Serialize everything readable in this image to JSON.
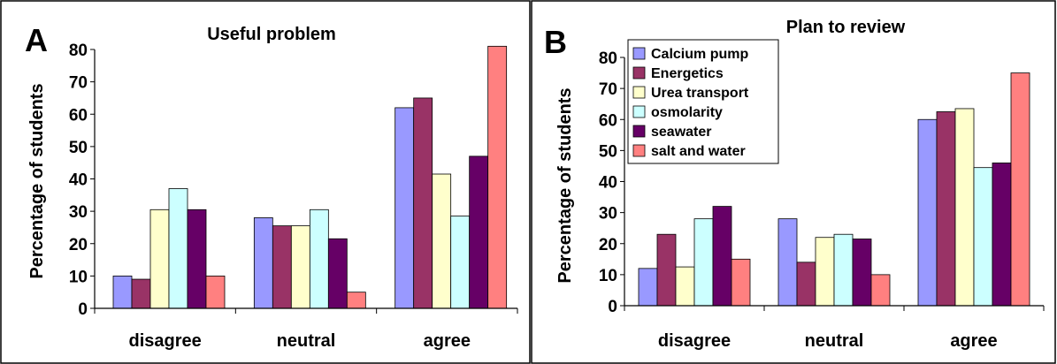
{
  "chart_data": [
    {
      "type": "bar",
      "panel_label": "A",
      "title": "Useful problem",
      "ylabel": "Percentage of students",
      "xlabel": "",
      "ylim": [
        0,
        80
      ],
      "yticks": [
        "0",
        "10",
        "20",
        "30",
        "40",
        "50",
        "60",
        "70",
        "80"
      ],
      "categories": [
        "disagree",
        "neutral",
        "agree"
      ],
      "series": [
        {
          "color": "#9999FF",
          "values": [
            10,
            28,
            62
          ]
        },
        {
          "color": "#993366",
          "values": [
            9,
            25.5,
            65
          ]
        },
        {
          "color": "#FFFFCC",
          "values": [
            30.5,
            25.5,
            41.5
          ]
        },
        {
          "color": "#CCFFFF",
          "values": [
            37,
            30.5,
            28.5
          ]
        },
        {
          "color": "#660066",
          "values": [
            30.5,
            21.5,
            47
          ]
        },
        {
          "color": "#FF8080",
          "values": [
            10,
            5,
            81
          ]
        }
      ],
      "legend": "none"
    },
    {
      "type": "bar",
      "panel_label": "B",
      "title": "Plan to review",
      "ylabel": "Percentage of students",
      "xlabel": "",
      "ylim": [
        0,
        80
      ],
      "yticks": [
        "0",
        "10",
        "20",
        "30",
        "40",
        "50",
        "60",
        "70",
        "80"
      ],
      "categories": [
        "disagree",
        "neutral",
        "agree"
      ],
      "series": [
        {
          "name": "Calcium pump",
          "color": "#9999FF",
          "values": [
            12,
            28,
            60
          ]
        },
        {
          "name": "Energetics",
          "color": "#993366",
          "values": [
            23,
            14,
            62.5
          ]
        },
        {
          "name": "Urea transport",
          "color": "#FFFFCC",
          "values": [
            12.5,
            22,
            63.5
          ]
        },
        {
          "name": "osmolarity",
          "color": "#CCFFFF",
          "values": [
            28,
            23,
            44.5
          ]
        },
        {
          "name": "seawater",
          "color": "#660066",
          "values": [
            32,
            21.5,
            46
          ]
        },
        {
          "name": "salt and water",
          "color": "#FF8080",
          "values": [
            15,
            10,
            75
          ]
        }
      ],
      "legend": "top-left"
    }
  ]
}
